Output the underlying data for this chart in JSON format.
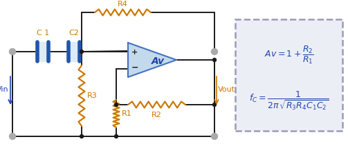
{
  "bg_color": "#ffffff",
  "wire_color": "#1a1a1a",
  "opamp_fill": "#b8d4e8",
  "opamp_stroke": "#4472c4",
  "cap_fill": "#7ab0d4",
  "cap_stroke": "#2255aa",
  "resistor_color": "#cc7700",
  "dot_color": "#1a1a1a",
  "terminal_color": "#aaaaaa",
  "formula_bg": "#eceef5",
  "formula_border": "#9999bb",
  "formula_text_color": "#2244aa",
  "label_color": "#cc7700",
  "label_color2": "#2244aa",
  "vin_label": "Vin",
  "vout_label": "Vout",
  "r1_label": "R1",
  "r2_label": "R2",
  "r3_label": "R3",
  "r4_label": "R4",
  "c1_label": "C 1",
  "c2_label": "C2",
  "av_label": "Av"
}
